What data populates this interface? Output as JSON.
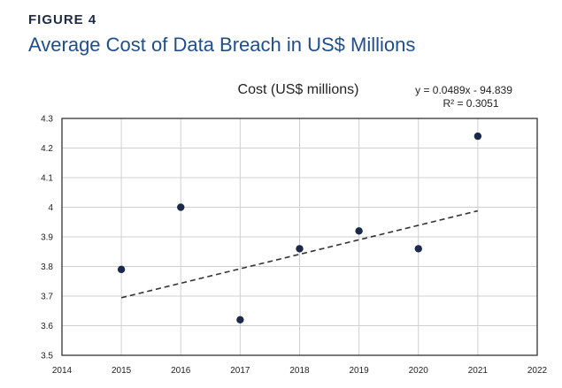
{
  "figure": {
    "label": "FIGURE 4",
    "title": "Average Cost of Data Breach in US$ Millions"
  },
  "chart_data": {
    "type": "scatter",
    "title": "Cost (US$ millions)",
    "xlabel": "",
    "ylabel": "",
    "xlim": [
      2014,
      2022
    ],
    "ylim": [
      3.5,
      4.3
    ],
    "x_ticks": [
      "2014",
      "2015",
      "2016",
      "2017",
      "2018",
      "2019",
      "2020",
      "2021",
      "2022"
    ],
    "y_ticks": [
      "3.5",
      "3.6",
      "3.7",
      "3.8",
      "3.9",
      "4",
      "4.1",
      "4.2",
      "4.3"
    ],
    "grid": true,
    "series": [
      {
        "x": [
          2015,
          2016,
          2017,
          2018,
          2019,
          2020,
          2021
        ],
        "y": [
          3.79,
          4.0,
          3.62,
          3.86,
          3.92,
          3.86,
          4.24
        ],
        "color": "#1b2a4a"
      }
    ],
    "trendline": {
      "type": "linear",
      "equation": "y = 0.0489x - 94.839",
      "r2": "R² = 0.3051",
      "x_range": [
        2015,
        2021
      ],
      "slope": 0.0489,
      "intercept": -94.839
    }
  }
}
